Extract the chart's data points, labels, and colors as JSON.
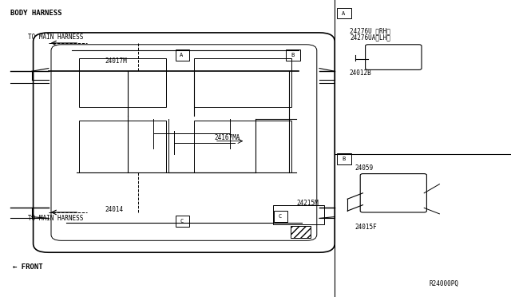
{
  "bg_color": "#ffffff",
  "line_color": "#000000",
  "fig_width": 6.4,
  "fig_height": 3.72,
  "title": "BODY HARNESS",
  "labels": {
    "body_harness": [
      0.02,
      0.96,
      "BODY HARNESS"
    ],
    "to_main_harness_top": [
      0.055,
      0.855,
      "TO MAIN HARNESS"
    ],
    "to_main_harness_bot": [
      0.055,
      0.22,
      "TO MAIN HARNESS"
    ],
    "front": [
      0.025,
      0.1,
      "← FRONT"
    ],
    "part_24017M": [
      0.215,
      0.79,
      "24017M"
    ],
    "part_24014": [
      0.215,
      0.285,
      "24014"
    ],
    "part_24167MA": [
      0.44,
      0.52,
      "24167MA"
    ],
    "part_24215M": [
      0.58,
      0.31,
      "24215M"
    ],
    "label_A_main": [
      0.345,
      0.81,
      "A"
    ],
    "label_B_main": [
      0.565,
      0.81,
      "B"
    ],
    "label_C_main": [
      0.345,
      0.25,
      "C"
    ],
    "label_C2": [
      0.565,
      0.275,
      "C"
    ],
    "part_24276U": [
      0.73,
      0.895,
      "24276U 〈RH〉"
    ],
    "part_24276UA": [
      0.73,
      0.865,
      "24276UA〈LH〉"
    ],
    "part_24012B": [
      0.69,
      0.735,
      "24012B"
    ],
    "part_24059": [
      0.71,
      0.43,
      "24059"
    ],
    "part_24015F": [
      0.71,
      0.225,
      "24015F"
    ],
    "label_A_right": [
      0.68,
      0.955,
      "A"
    ],
    "label_B_right": [
      0.68,
      0.465,
      "B"
    ],
    "ref_code": [
      0.84,
      0.045,
      "R24000PQ"
    ]
  }
}
